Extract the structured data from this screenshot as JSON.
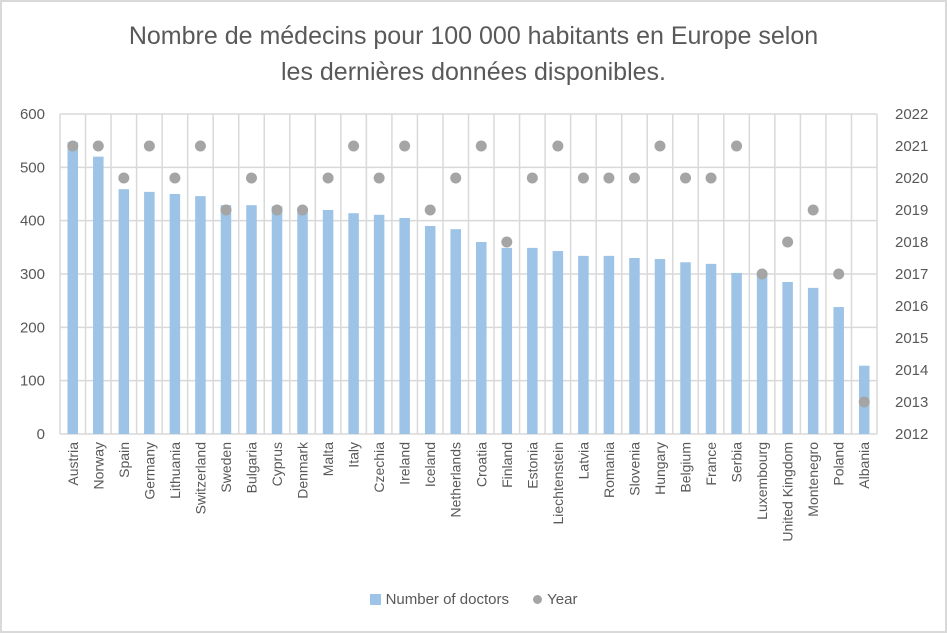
{
  "chart_data": {
    "type": "bar",
    "title": "Nombre de médecins pour 100 000 habitants en Europe selon les dernières données disponibles.",
    "title_lines": [
      "Nombre de médecins pour 100 000 habitants en Europe selon",
      "les dernières données disponibles."
    ],
    "xlabel": "",
    "ylabel": "",
    "y2label": "",
    "categories": [
      "Austria",
      "Norway",
      "Spain",
      "Germany",
      "Lithuania",
      "Switzerland",
      "Sweden",
      "Bulgaria",
      "Cyprus",
      "Denmark",
      "Malta",
      "Italy",
      "Czechia",
      "Ireland",
      "Iceland",
      "Netherlands",
      "Croatia",
      "Finland",
      "Estonia",
      "Liechtenstein",
      "Latvia",
      "Romania",
      "Slovenia",
      "Hungary",
      "Belgium",
      "France",
      "Serbia",
      "Luxembourg",
      "United Kingdom",
      "Montenegro",
      "Poland",
      "Albania"
    ],
    "series": [
      {
        "name": "Number of doctors",
        "type": "bar",
        "axis": "left",
        "color": "#9dc3e6",
        "values": [
          547,
          520,
          459,
          454,
          450,
          446,
          429,
          429,
          427,
          422,
          420,
          414,
          411,
          405,
          390,
          384,
          360,
          349,
          349,
          343,
          334,
          334,
          330,
          328,
          322,
          319,
          302,
          298,
          285,
          274,
          238,
          128
        ]
      },
      {
        "name": "Year",
        "type": "scatter",
        "axis": "right",
        "color": "#a5a5a5",
        "values": [
          2021,
          2021,
          2020,
          2021,
          2020,
          2021,
          2019,
          2020,
          2019,
          2019,
          2020,
          2021,
          2020,
          2021,
          2019,
          2020,
          2021,
          2018,
          2020,
          2021,
          2020,
          2020,
          2020,
          2021,
          2020,
          2020,
          2021,
          2017,
          2018,
          2019,
          2017,
          2013
        ]
      }
    ],
    "ylim": [
      0,
      600
    ],
    "yticks": [
      0,
      100,
      200,
      300,
      400,
      500,
      600
    ],
    "y2lim": [
      2012,
      2022
    ],
    "y2ticks": [
      2012,
      2013,
      2014,
      2015,
      2016,
      2017,
      2018,
      2019,
      2020,
      2021,
      2022
    ],
    "grid": true,
    "legend": "bottom",
    "legend_labels": [
      "Number of doctors",
      "Year"
    ]
  }
}
